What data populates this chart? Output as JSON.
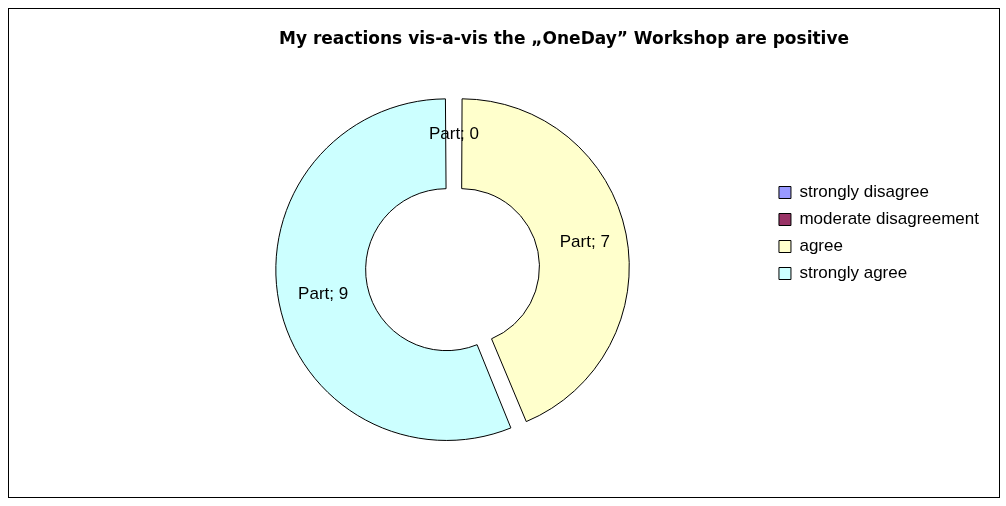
{
  "chart_data": {
    "type": "donut",
    "title": "My reactions vis-a-vis the „OneDay” Workshop are positive",
    "categories": [
      "strongly disagree",
      "moderate disagreement",
      "agree",
      "strongly agree"
    ],
    "values": [
      0,
      0,
      7,
      9
    ],
    "colors": [
      "#9999ff",
      "#993366",
      "#ffffcc",
      "#ccffff"
    ],
    "value_labels": [
      "Part; 0",
      null,
      "Part; 7",
      "Part; 9"
    ],
    "legend": "right"
  }
}
